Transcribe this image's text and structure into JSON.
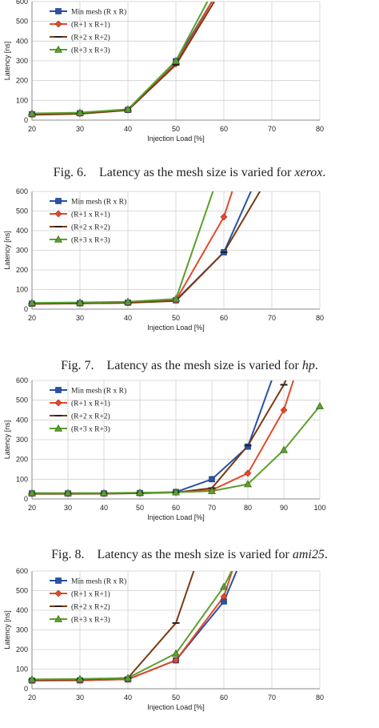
{
  "series_meta": [
    {
      "name": "Min mesh (R x R)",
      "color": "#2a52a8",
      "marker": "square"
    },
    {
      "name": "(R+1 x R+1)",
      "color": "#e2492b",
      "marker": "diamond"
    },
    {
      "name": "(R+2 x R+2)",
      "color": "#7a3a12",
      "marker": "dash"
    },
    {
      "name": "(R+3 x R+3)",
      "color": "#5aa02c",
      "marker": "triangle"
    }
  ],
  "captions": [
    {
      "prefix": "Fig. 6.",
      "text": "Latency as the mesh size is varied for",
      "dataset": "xerox",
      "suffix": "."
    },
    {
      "prefix": "Fig. 7.",
      "text": "Latency as the mesh size is varied for",
      "dataset": "hp",
      "suffix": "."
    },
    {
      "prefix": "Fig. 8.",
      "text": "Latency as the mesh size is varied for",
      "dataset": "ami25",
      "suffix": "."
    }
  ],
  "chart_data": [
    {
      "type": "line",
      "xlabel": "Injection Load [%]",
      "ylabel": "Latency [ns]",
      "xlim": [
        20,
        80
      ],
      "ylim": [
        0,
        600
      ],
      "xticks": [
        20,
        30,
        40,
        50,
        60,
        70,
        80
      ],
      "yticks": [
        0,
        100,
        200,
        300,
        400,
        500,
        600
      ],
      "grid": true,
      "legend": "top-left",
      "series": [
        {
          "name": "Min mesh (R x R)",
          "x": [
            20,
            30,
            40,
            50,
            58
          ],
          "y": [
            30,
            35,
            52,
            298,
            620
          ]
        },
        {
          "name": "(R+1 x R+1)",
          "x": [
            20,
            30,
            40,
            50,
            58
          ],
          "y": [
            28,
            33,
            52,
            285,
            620
          ]
        },
        {
          "name": "(R+2 x R+2)",
          "x": [
            20,
            30,
            40,
            50,
            58
          ],
          "y": [
            27,
            32,
            50,
            280,
            600
          ]
        },
        {
          "name": "(R+3 x R+3)",
          "x": [
            20,
            30,
            40,
            50,
            57
          ],
          "y": [
            34,
            38,
            55,
            300,
            620
          ]
        }
      ]
    },
    {
      "type": "line",
      "xlabel": "Injection Load [%]",
      "ylabel": "Latency [ns]",
      "xlim": [
        20,
        80
      ],
      "ylim": [
        0,
        600
      ],
      "xticks": [
        20,
        30,
        40,
        50,
        60,
        70,
        80
      ],
      "yticks": [
        0,
        100,
        200,
        300,
        400,
        500,
        600
      ],
      "grid": true,
      "legend": "top-left",
      "series": [
        {
          "name": "Min mesh (R x R)",
          "x": [
            20,
            30,
            40,
            50,
            60,
            66
          ],
          "y": [
            28,
            30,
            33,
            45,
            290,
            620
          ]
        },
        {
          "name": "(R+1 x R+1)",
          "x": [
            20,
            30,
            40,
            50,
            60,
            62
          ],
          "y": [
            28,
            30,
            33,
            45,
            470,
            620
          ]
        },
        {
          "name": "(R+2 x R+2)",
          "x": [
            20,
            30,
            40,
            50,
            60,
            68
          ],
          "y": [
            27,
            29,
            32,
            42,
            290,
            620
          ]
        },
        {
          "name": "(R+3 x R+3)",
          "x": [
            20,
            30,
            40,
            50,
            58
          ],
          "y": [
            32,
            34,
            38,
            52,
            620
          ]
        }
      ]
    },
    {
      "type": "line",
      "xlabel": "Injection Load [%]",
      "ylabel": "Latency [ns]",
      "xlim": [
        20,
        100
      ],
      "ylim": [
        0,
        600
      ],
      "xticks": [
        20,
        30,
        40,
        50,
        60,
        70,
        80,
        90,
        100
      ],
      "yticks": [
        0,
        100,
        200,
        300,
        400,
        500,
        600
      ],
      "grid": true,
      "legend": "top-left",
      "series": [
        {
          "name": "Min mesh (R x R)",
          "x": [
            20,
            30,
            40,
            50,
            60,
            70,
            80,
            87
          ],
          "y": [
            28,
            28,
            28,
            30,
            35,
            100,
            265,
            620
          ]
        },
        {
          "name": "(R+1 x R+1)",
          "x": [
            20,
            30,
            40,
            50,
            60,
            70,
            80,
            90,
            93
          ],
          "y": [
            27,
            27,
            27,
            29,
            33,
            45,
            130,
            450,
            620
          ]
        },
        {
          "name": "(R+2 x R+2)",
          "x": [
            20,
            30,
            40,
            50,
            60,
            70,
            80,
            90,
            91
          ],
          "y": [
            26,
            26,
            27,
            29,
            33,
            55,
            270,
            578,
            620
          ]
        },
        {
          "name": "(R+3 x R+3)",
          "x": [
            20,
            30,
            40,
            50,
            60,
            70,
            80,
            90,
            100
          ],
          "y": [
            30,
            30,
            30,
            32,
            34,
            40,
            75,
            248,
            470
          ]
        }
      ]
    },
    {
      "type": "line",
      "xlabel": "Injection Load [%]",
      "ylabel": "Latency [ns]",
      "xlim": [
        20,
        80
      ],
      "ylim": [
        0,
        600
      ],
      "xticks": [
        20,
        30,
        40,
        50,
        60,
        70,
        80
      ],
      "yticks": [
        0,
        100,
        200,
        300,
        400,
        500,
        600
      ],
      "grid": true,
      "legend": "top-left",
      "series": [
        {
          "name": "Min mesh (R x R)",
          "x": [
            20,
            30,
            40,
            50,
            60,
            63
          ],
          "y": [
            42,
            43,
            48,
            145,
            445,
            620
          ]
        },
        {
          "name": "(R+1 x R+1)",
          "x": [
            20,
            30,
            40,
            50,
            60,
            62
          ],
          "y": [
            42,
            43,
            48,
            145,
            470,
            620
          ]
        },
        {
          "name": "(R+2 x R+2)",
          "x": [
            20,
            30,
            40,
            50,
            54
          ],
          "y": [
            45,
            46,
            55,
            335,
            620
          ]
        },
        {
          "name": "(R+3 x R+3)",
          "x": [
            20,
            30,
            40,
            50,
            60,
            62
          ],
          "y": [
            48,
            50,
            55,
            180,
            520,
            620
          ]
        }
      ]
    }
  ]
}
